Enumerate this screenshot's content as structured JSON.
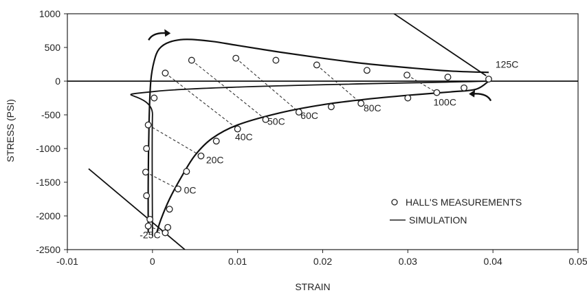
{
  "chart_data": {
    "type": "scatter",
    "xlabel": "STRAIN",
    "ylabel": "STRESS (PSI)",
    "xlim": [
      -0.01,
      0.05
    ],
    "ylim": [
      -2500,
      1000
    ],
    "x_ticks": [
      -0.01,
      0,
      0.01,
      0.02,
      0.03,
      0.04,
      0.05
    ],
    "x_tick_labels": [
      "-0.01",
      "0",
      "0.01",
      "0.02",
      "0.03",
      "0.04",
      "0.05"
    ],
    "y_ticks": [
      1000,
      500,
      0,
      -500,
      -1000,
      -1500,
      -2000,
      -2500
    ],
    "y_tick_labels": [
      "1000",
      "500",
      "0",
      "-500",
      "-1000",
      "-1500",
      "-2000",
      "-2500"
    ],
    "grid": false,
    "legend": {
      "position": "bottom-right",
      "entries": [
        {
          "label": "HALL'S MEASUREMENTS",
          "marker": "circle"
        },
        {
          "label": "SIMULATION",
          "marker": "line"
        }
      ]
    },
    "series": [
      {
        "name": "HALL'S MEASUREMENTS",
        "kind": "scatter",
        "points": [
          [
            -0.0005,
            -2150
          ],
          [
            -0.0003,
            -2050
          ],
          [
            -0.0007,
            -1700
          ],
          [
            -0.0008,
            -1350
          ],
          [
            -0.0007,
            -1000
          ],
          [
            -0.0005,
            -650
          ],
          [
            0.0002,
            -250
          ],
          [
            0.0015,
            120
          ],
          [
            0.0046,
            310
          ],
          [
            0.0098,
            340
          ],
          [
            0.0145,
            310
          ],
          [
            0.0193,
            240
          ],
          [
            0.0252,
            160
          ],
          [
            0.0299,
            90
          ],
          [
            0.0347,
            60
          ],
          [
            0.0395,
            30
          ],
          [
            0.0366,
            -100
          ],
          [
            0.0334,
            -170
          ],
          [
            0.03,
            -250
          ],
          [
            0.0245,
            -330
          ],
          [
            0.021,
            -380
          ],
          [
            0.0172,
            -460
          ],
          [
            0.0133,
            -570
          ],
          [
            0.01,
            -710
          ],
          [
            0.0075,
            -890
          ],
          [
            0.0057,
            -1110
          ],
          [
            0.004,
            -1340
          ],
          [
            0.003,
            -1600
          ],
          [
            0.002,
            -1900
          ],
          [
            0.0018,
            -2170
          ],
          [
            0.0015,
            -2250
          ]
        ]
      },
      {
        "name": "SIMULATION",
        "kind": "line",
        "segments": [
          [
            [
              -0.0005,
              -2250
            ],
            [
              -0.0005,
              -1500
            ],
            [
              -0.0004,
              -600
            ],
            [
              -0.0002,
              0
            ],
            [
              0.0002,
              300
            ],
            [
              0.0008,
              480
            ],
            [
              0.002,
              580
            ],
            [
              0.004,
              620
            ],
            [
              0.007,
              590
            ],
            [
              0.01,
              530
            ],
            [
              0.015,
              430
            ],
            [
              0.02,
              340
            ],
            [
              0.025,
              260
            ],
            [
              0.03,
              200
            ],
            [
              0.035,
              150
            ],
            [
              0.0395,
              130
            ]
          ],
          [
            [
              0.0395,
              0
            ],
            [
              0.038,
              -120
            ],
            [
              0.035,
              -160
            ],
            [
              0.03,
              -210
            ],
            [
              0.025,
              -270
            ],
            [
              0.02,
              -350
            ],
            [
              0.015,
              -470
            ],
            [
              0.01,
              -650
            ],
            [
              0.007,
              -850
            ],
            [
              0.005,
              -1100
            ],
            [
              0.0035,
              -1400
            ],
            [
              0.002,
              -1750
            ],
            [
              0.001,
              -2050
            ],
            [
              0.0005,
              -2250
            ]
          ],
          [
            [
              0.0,
              -2300
            ],
            [
              0.0,
              -500
            ],
            [
              0.0005,
              -150
            ],
            [
              0.0395,
              0
            ]
          ],
          [
            [
              -0.0075,
              -1300
            ],
            [
              0.0038,
              -2500
            ]
          ],
          [
            [
              0.0278,
              1050
            ],
            [
              0.0392,
              80
            ]
          ],
          [
            [
              -0.01,
              0
            ],
            [
              0.05,
              0
            ]
          ]
        ]
      }
    ],
    "isotherm_links": [
      {
        "label": "-25C",
        "from": [
          -0.0005,
          -2150
        ],
        "to": [
          0.0015,
          -2250
        ]
      },
      {
        "label": "0C",
        "from": [
          -0.0008,
          -1350
        ],
        "to": [
          0.003,
          -1600
        ]
      },
      {
        "label": "20C",
        "from": [
          -0.0005,
          -650
        ],
        "to": [
          0.0057,
          -1110
        ]
      },
      {
        "label": "40C",
        "from": [
          0.0015,
          120
        ],
        "to": [
          0.01,
          -710
        ]
      },
      {
        "label": "50C",
        "from": [
          0.0046,
          310
        ],
        "to": [
          0.0133,
          -570
        ]
      },
      {
        "label": "60C",
        "from": [
          0.0098,
          340
        ],
        "to": [
          0.0172,
          -460
        ]
      },
      {
        "label": "80C",
        "from": [
          0.0193,
          240
        ],
        "to": [
          0.0245,
          -330
        ]
      },
      {
        "label": "100C",
        "from": [
          0.0299,
          90
        ],
        "to": [
          0.0334,
          -170
        ]
      }
    ],
    "annotations": [
      {
        "text": "-25C",
        "x": -0.0015,
        "y": -2330
      },
      {
        "text": "0C",
        "x": 0.0037,
        "y": -1670
      },
      {
        "text": "20C",
        "x": 0.0063,
        "y": -1220
      },
      {
        "text": "40C",
        "x": 0.0097,
        "y": -880
      },
      {
        "text": "50C",
        "x": 0.0135,
        "y": -650
      },
      {
        "text": "60C",
        "x": 0.0174,
        "y": -560
      },
      {
        "text": "80C",
        "x": 0.0248,
        "y": -450
      },
      {
        "text": "100C",
        "x": 0.033,
        "y": -360
      },
      {
        "text": "125C",
        "x": 0.0403,
        "y": 200
      }
    ],
    "arrows": [
      {
        "direction": "right",
        "at": [
          0.001,
          690
        ]
      },
      {
        "direction": "left",
        "at": [
          0.0383,
          -210
        ]
      }
    ]
  }
}
